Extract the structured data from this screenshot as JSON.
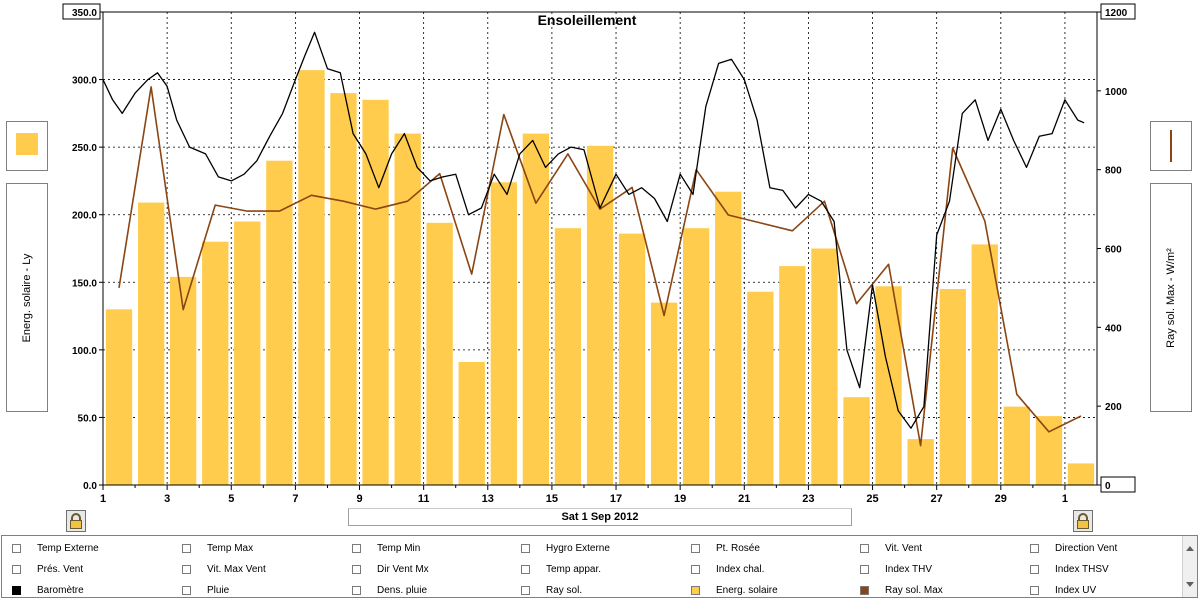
{
  "chart_data": {
    "type": "bar",
    "title": "Ensoleillement",
    "ylabel_left": "Energ. solaire - Ly",
    "ylabel_right": "Ray sol. Max - W/m²",
    "date_label": "Sat 1 Sep 2012",
    "y_left": {
      "range": [
        0,
        350
      ],
      "ticks": [
        "0.0",
        "50.0",
        "100.0",
        "150.0",
        "200.0",
        "250.0",
        "300.0",
        "350.0"
      ]
    },
    "y_right": {
      "range": [
        0,
        1200
      ],
      "ticks": [
        "0",
        "200",
        "400",
        "600",
        "800",
        "1000",
        "1200"
      ]
    },
    "x_ticks": [
      "1",
      "3",
      "5",
      "7",
      "9",
      "11",
      "13",
      "15",
      "17",
      "19",
      "21",
      "23",
      "25",
      "27",
      "29",
      "1"
    ],
    "grid": true,
    "series": [
      {
        "name": "Energ. solaire",
        "axis": "left",
        "kind": "bar",
        "color": "#FFCC4D",
        "days": [
          1,
          2,
          3,
          4,
          5,
          6,
          7,
          8,
          9,
          10,
          11,
          12,
          13,
          14,
          15,
          16,
          17,
          18,
          19,
          20,
          21,
          22,
          23,
          24,
          25,
          26,
          27,
          28,
          29,
          30,
          31
        ],
        "values": [
          130,
          209,
          154,
          180,
          195,
          240,
          307,
          290,
          285,
          260,
          194,
          91,
          224,
          260,
          190,
          251,
          186,
          135,
          190,
          217,
          143,
          162,
          175,
          65,
          147,
          34,
          145,
          178,
          58,
          51,
          16
        ]
      },
      {
        "name": "Ray sol. Max",
        "axis": "right",
        "kind": "line",
        "color": "#8B4513",
        "x": [
          1.5,
          2.5,
          3.5,
          4.5,
          5.5,
          6.5,
          7.5,
          8.5,
          9.5,
          10.5,
          11.5,
          12.5,
          13.5,
          14.5,
          15.5,
          16.5,
          17.5,
          18.5,
          19.5,
          20.5,
          21.5,
          22.5,
          23.5,
          24.5,
          25.5,
          26.5,
          27.5,
          28.5,
          29.5,
          30.5,
          31.5
        ],
        "values": [
          500,
          1010,
          445,
          710,
          695,
          695,
          735,
          720,
          700,
          720,
          790,
          535,
          940,
          715,
          840,
          700,
          755,
          430,
          800,
          685,
          665,
          645,
          720,
          460,
          560,
          100,
          855,
          670,
          230,
          135,
          175
        ]
      },
      {
        "name": "Baromètre",
        "axis": "left",
        "kind": "line",
        "color": "#000000",
        "x": [
          1,
          1.3,
          1.6,
          2,
          2.4,
          2.7,
          3,
          3.3,
          3.7,
          4.2,
          4.6,
          5,
          5.4,
          5.8,
          6.2,
          6.6,
          7,
          7.3,
          7.6,
          8,
          8.4,
          8.8,
          9.2,
          9.6,
          10,
          10.4,
          10.8,
          11.2,
          11.6,
          12,
          12.4,
          12.8,
          13.2,
          13.6,
          14,
          14.4,
          14.8,
          15.2,
          15.6,
          16,
          16.5,
          17,
          17.4,
          17.8,
          18.2,
          18.6,
          19,
          19.4,
          19.8,
          20.2,
          20.6,
          21,
          21.4,
          21.8,
          22.2,
          22.6,
          23,
          23.4,
          23.8,
          24.2,
          24.6,
          25,
          25.4,
          25.8,
          26.2,
          26.6,
          27,
          27.4,
          27.8,
          28.2,
          28.6,
          29,
          29.4,
          29.8,
          30.2,
          30.6,
          31,
          31.4,
          31.6
        ],
        "values": [
          300,
          285,
          275,
          290,
          300,
          305,
          295,
          270,
          250,
          245,
          228,
          225,
          230,
          240,
          258,
          275,
          300,
          318,
          335,
          308,
          305,
          260,
          245,
          220,
          245,
          260,
          235,
          225,
          228,
          230,
          200,
          205,
          230,
          215,
          245,
          255,
          235,
          245,
          250,
          248,
          205,
          230,
          215,
          220,
          212,
          195,
          230,
          215,
          280,
          312,
          315,
          300,
          270,
          220,
          218,
          205,
          215,
          210,
          195,
          100,
          72,
          148,
          95,
          55,
          42,
          58,
          185,
          210,
          275,
          285,
          255,
          278,
          255,
          235,
          258,
          260,
          285,
          270,
          268
        ]
      }
    ],
    "legend": [
      {
        "label": "Temp Externe",
        "checked": false,
        "color": "#FFFFFF"
      },
      {
        "label": "Temp Max",
        "checked": false,
        "color": "#FFFFFF"
      },
      {
        "label": "Temp Min",
        "checked": false,
        "color": "#FFFFFF"
      },
      {
        "label": "Hygro Externe",
        "checked": false,
        "color": "#FFFFFF"
      },
      {
        "label": "Pt. Rosée",
        "checked": false,
        "color": "#FFFFFF"
      },
      {
        "label": "Vit. Vent",
        "checked": false,
        "color": "#FFFFFF"
      },
      {
        "label": "Direction Vent",
        "checked": false,
        "color": "#FFFFFF"
      },
      {
        "label": "Prés. Vent",
        "checked": false,
        "color": "#FFFFFF"
      },
      {
        "label": "Vit. Max Vent",
        "checked": false,
        "color": "#FFFFFF"
      },
      {
        "label": "Dir Vent Mx",
        "checked": false,
        "color": "#FFFFFF"
      },
      {
        "label": "Temp appar.",
        "checked": false,
        "color": "#FFFFFF"
      },
      {
        "label": "Index chal.",
        "checked": false,
        "color": "#FFFFFF"
      },
      {
        "label": "Index THV",
        "checked": false,
        "color": "#FFFFFF"
      },
      {
        "label": "Index THSV",
        "checked": false,
        "color": "#FFFFFF"
      },
      {
        "label": "Baromètre",
        "checked": true,
        "color": "#000000"
      },
      {
        "label": "Pluie",
        "checked": false,
        "color": "#FFFFFF"
      },
      {
        "label": "Dens. pluie",
        "checked": false,
        "color": "#FFFFFF"
      },
      {
        "label": "Ray sol.",
        "checked": false,
        "color": "#FFFFFF"
      },
      {
        "label": "Energ. solaire",
        "checked": true,
        "color": "#FFCC4D"
      },
      {
        "label": "Ray sol. Max",
        "checked": true,
        "color": "#8B4513"
      },
      {
        "label": "Index UV",
        "checked": false,
        "color": "#FFFFFF"
      }
    ],
    "swatch_left_color": "#FFCC4D",
    "swatch_right_color": "#8B4513"
  }
}
